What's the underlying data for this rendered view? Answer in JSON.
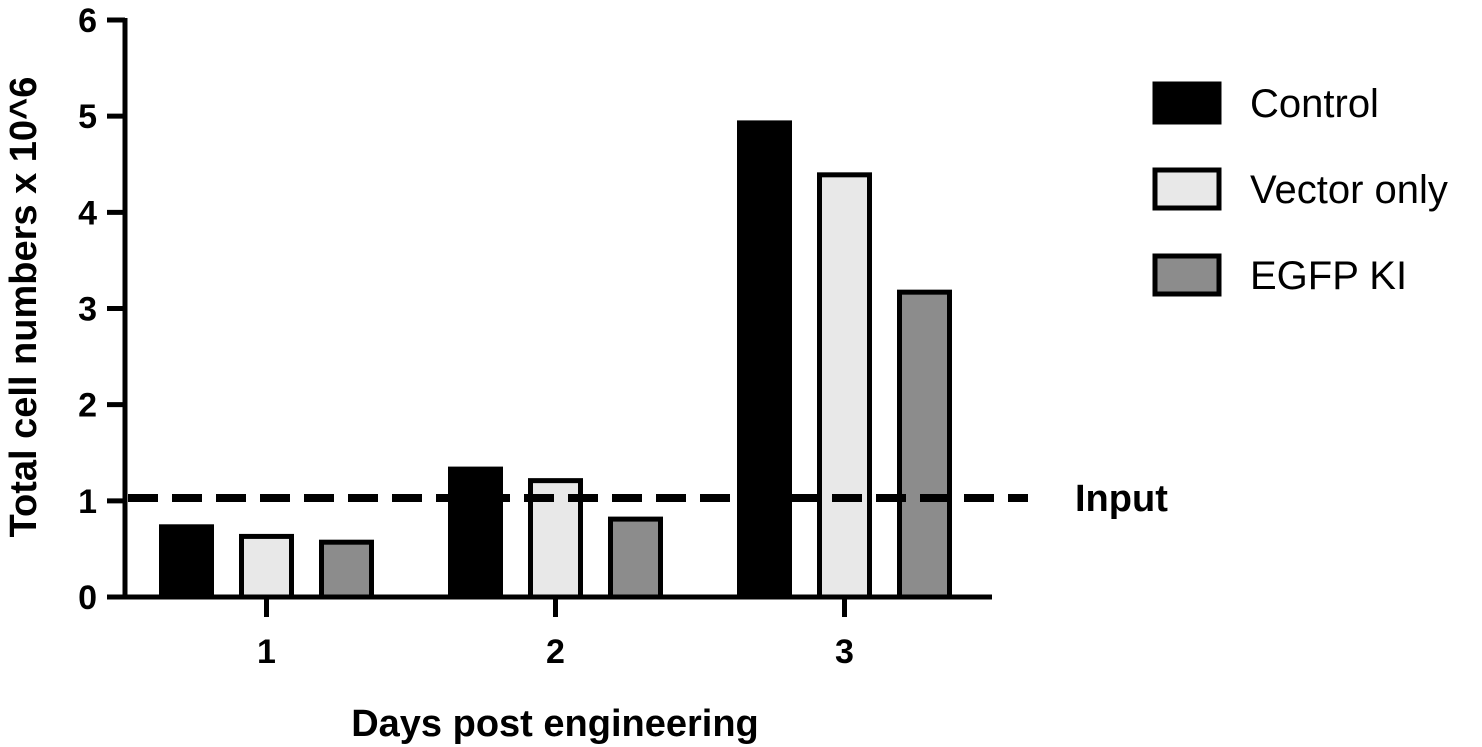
{
  "chart_data": {
    "type": "bar",
    "categories": [
      "1",
      "2",
      "3"
    ],
    "series": [
      {
        "name": "Control",
        "values": [
          0.73,
          1.33,
          4.93
        ],
        "color": "#000000"
      },
      {
        "name": "Vector only",
        "values": [
          0.63,
          1.21,
          4.39
        ],
        "color": "#e8e8e8"
      },
      {
        "name": "EGFP KI",
        "values": [
          0.57,
          0.81,
          3.17
        ],
        "color": "#8c8c8c"
      }
    ],
    "xlabel": "Days post engineering",
    "ylabel": "Total cell numbers x 10^6",
    "ylim": [
      0,
      6
    ],
    "yticks": [
      "0",
      "1",
      "2",
      "3",
      "4",
      "5",
      "6"
    ],
    "grid": false,
    "legend_position": "right",
    "reference_line": {
      "value": 1.03,
      "label": "Input",
      "style": "dashed"
    }
  }
}
